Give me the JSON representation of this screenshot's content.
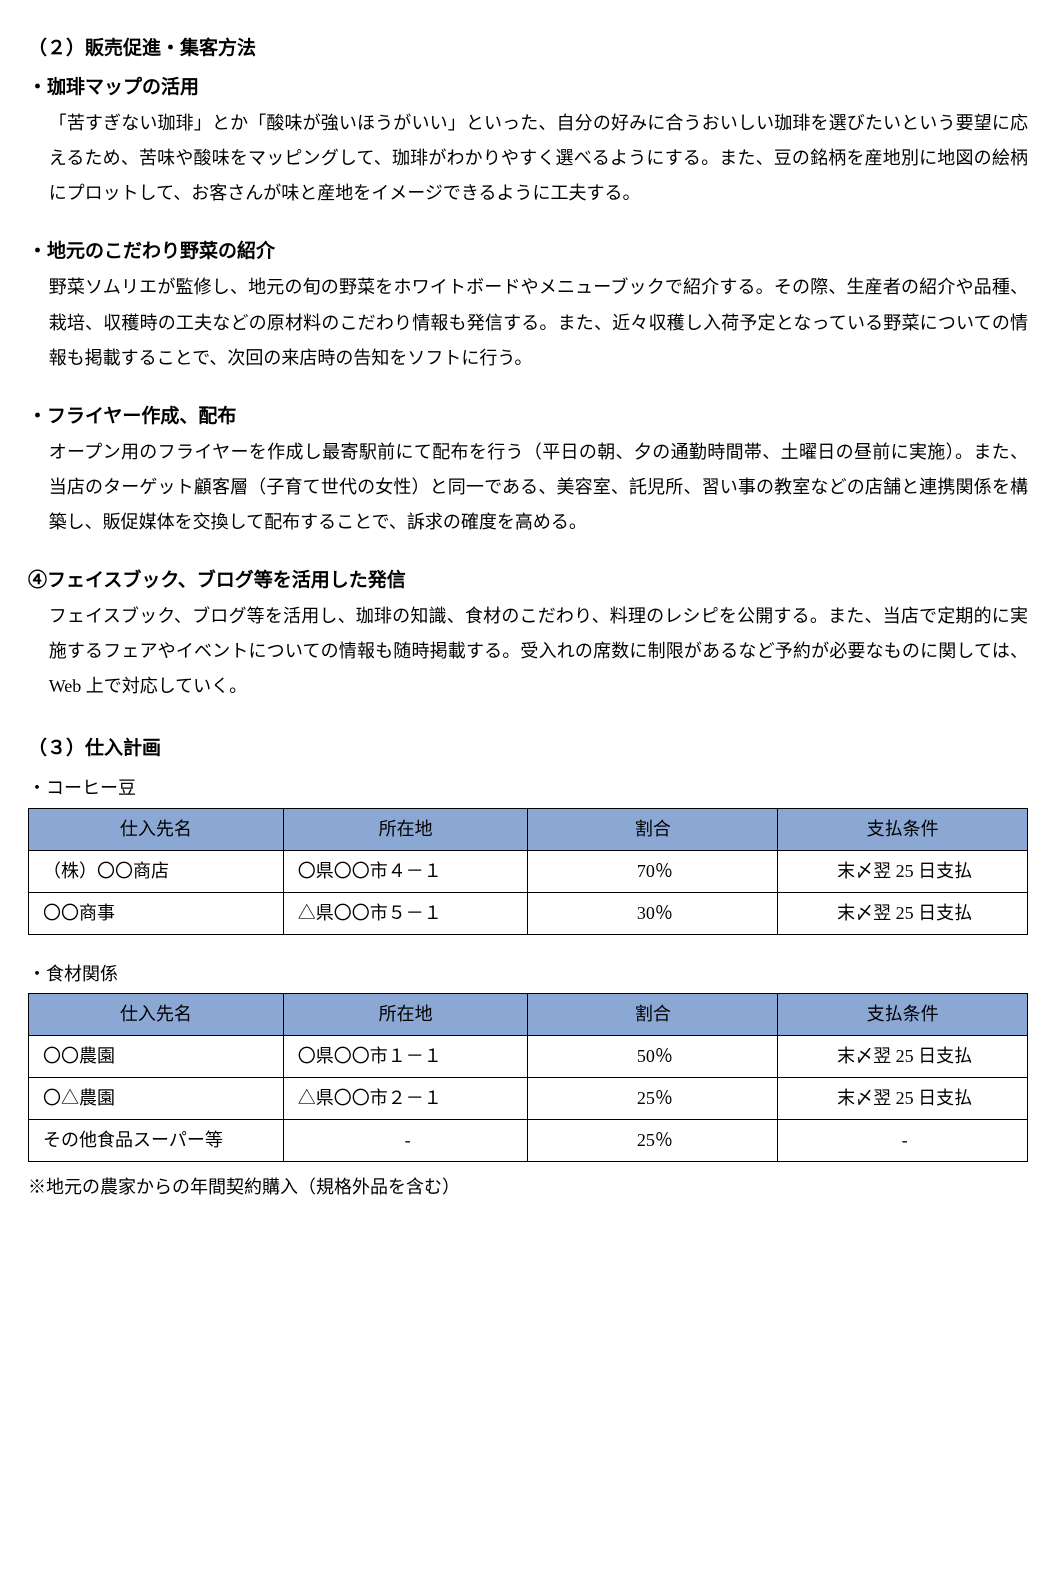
{
  "section2": {
    "title": "（２）販売促進・集客方法",
    "items": [
      {
        "heading": "・珈琲マップの活用",
        "body": "「苦すぎない珈琲」とか「酸味が強いほうがいい」といった、自分の好みに合うおいしい珈琲を選びたいという要望に応えるため、苦味や酸味をマッピングして、珈琲がわかりやすく選べるようにする。また、豆の銘柄を産地別に地図の絵柄にプロットして、お客さんが味と産地をイメージできるように工夫する。"
      },
      {
        "heading": "・地元のこだわり野菜の紹介",
        "body": "野菜ソムリエが監修し、地元の旬の野菜をホワイトボードやメニューブックで紹介する。その際、生産者の紹介や品種、栽培、収穫時の工夫などの原材料のこだわり情報も発信する。また、近々収穫し入荷予定となっている野菜についての情報も掲載することで、次回の来店時の告知をソフトに行う。"
      },
      {
        "heading": "・フライヤー作成、配布",
        "body": "オープン用のフライヤーを作成し最寄駅前にて配布を行う（平日の朝、夕の通勤時間帯、土曜日の昼前に実施）。また、当店のターゲット顧客層（子育て世代の女性）と同一である、美容室、託児所、習い事の教室などの店舗と連携関係を構築し、販促媒体を交換して配布することで、訴求の確度を高める。"
      }
    ],
    "item4": {
      "heading": "④フェイスブック、ブログ等を活用した発信",
      "body": "フェイスブック、ブログ等を活用し、珈琲の知識、食材のこだわり、料理のレシピを公開する。また、当店で定期的に実施するフェアやイベントについての情報も随時掲載する。受入れの席数に制限があるなど予約が必要なものに関しては、Web 上で対応していく。"
    }
  },
  "section3": {
    "title": "（３）仕入計画",
    "table1": {
      "label": "・コーヒー豆",
      "headers": [
        "仕入先名",
        "所在地",
        "割合",
        "支払条件"
      ],
      "rows": [
        [
          "（株）〇〇商店",
          "〇県〇〇市４－１",
          "70％",
          "末〆翌 25 日支払"
        ],
        [
          "〇〇商事",
          "△県〇〇市５－１",
          "30％",
          "末〆翌 25 日支払"
        ]
      ]
    },
    "table2": {
      "label": "・食材関係",
      "headers": [
        "仕入先名",
        "所在地",
        "割合",
        "支払条件"
      ],
      "rows": [
        [
          "〇〇農園",
          "〇県〇〇市１－１",
          "50％",
          "末〆翌 25 日支払"
        ],
        [
          "〇△農園",
          "△県〇〇市２－１",
          "25％",
          "末〆翌 25 日支払"
        ],
        [
          "その他食品スーパー等",
          "‐",
          "25％",
          "‐"
        ]
      ]
    },
    "footnote": "※地元の農家からの年間契約購入（規格外品を含む）"
  },
  "style": {
    "header_bg": "#8ba7d4",
    "border_color": "#000000",
    "body_fontsize": 18,
    "heading_fontsize": 19
  }
}
